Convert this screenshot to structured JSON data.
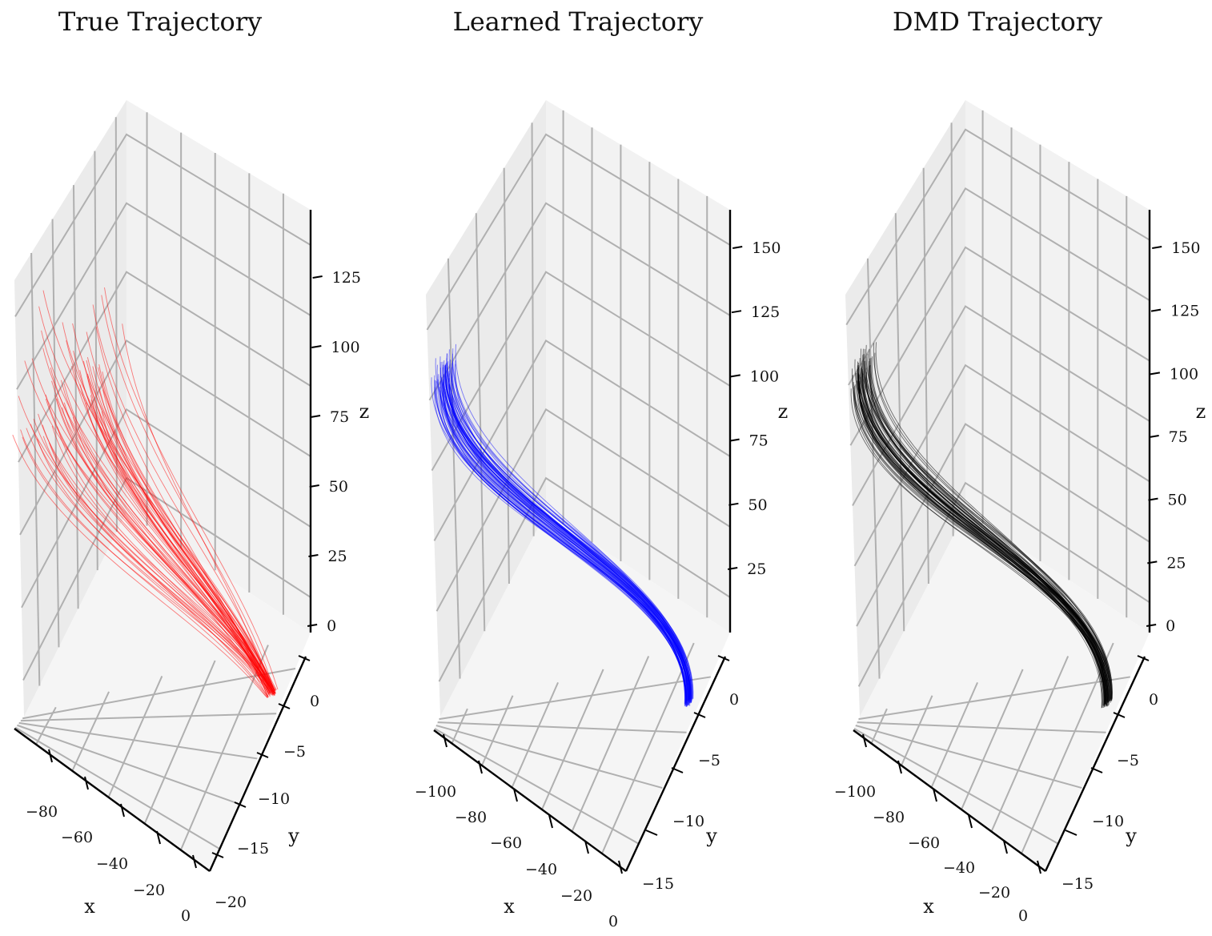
{
  "chart_data": [
    {
      "type": "line",
      "projection": "3d",
      "title": "True Trajectory",
      "color": "#ff0000",
      "xlabel": "x",
      "ylabel": "y",
      "zlabel": "z",
      "xticks": [
        "−80",
        "−60",
        "−40",
        "−20",
        "0"
      ],
      "yticks": [
        "0",
        "−5",
        "−10",
        "−15",
        "−20"
      ],
      "zticks": [
        "0",
        "25",
        "50",
        "75",
        "100",
        "125"
      ],
      "xlim": [
        -95,
        5
      ],
      "ylim": [
        -22,
        3
      ],
      "zlim": [
        0,
        150
      ],
      "grid": true,
      "n_trajectories": 60,
      "start": {
        "x": 0,
        "y": -14,
        "z": 0
      },
      "end_range": {
        "x": [
          -90,
          -60
        ],
        "y": [
          -22,
          3
        ],
        "z": [
          110,
          150
        ]
      }
    },
    {
      "type": "line",
      "projection": "3d",
      "title": "Learned Trajectory",
      "color": "#0000ff",
      "xlabel": "x",
      "ylabel": "y",
      "zlabel": "z",
      "xticks": [
        "−100",
        "−80",
        "−60",
        "−40",
        "−20",
        "0"
      ],
      "yticks": [
        "0",
        "−5",
        "−10",
        "−15"
      ],
      "zticks": [
        "25",
        "50",
        "75",
        "100",
        "125",
        "150"
      ],
      "xlim": [
        -105,
        5
      ],
      "ylim": [
        -17,
        3
      ],
      "zlim": [
        0,
        165
      ],
      "grid": true,
      "n_trajectories": 60,
      "start": {
        "x": 0,
        "y": -13,
        "z": 0
      },
      "end_range": {
        "x": [
          -105,
          -98
        ],
        "y": [
          -3,
          3
        ],
        "z": [
          135,
          145
        ]
      }
    },
    {
      "type": "line",
      "projection": "3d",
      "title": "DMD Trajectory",
      "color": "#000000",
      "xlabel": "x",
      "ylabel": "y",
      "zlabel": "z",
      "xticks": [
        "−100",
        "−80",
        "−60",
        "−40",
        "−20",
        "0"
      ],
      "yticks": [
        "0",
        "−5",
        "−10",
        "−15"
      ],
      "zticks": [
        "0",
        "25",
        "50",
        "75",
        "100",
        "125",
        "150"
      ],
      "xlim": [
        -105,
        5
      ],
      "ylim": [
        -17,
        3
      ],
      "zlim": [
        0,
        165
      ],
      "grid": true,
      "n_trajectories": 60,
      "start": {
        "x": 0,
        "y": -13,
        "z": 0
      },
      "end_range": {
        "x": [
          -105,
          -98
        ],
        "y": [
          -3,
          3
        ],
        "z": [
          135,
          145
        ]
      }
    }
  ]
}
